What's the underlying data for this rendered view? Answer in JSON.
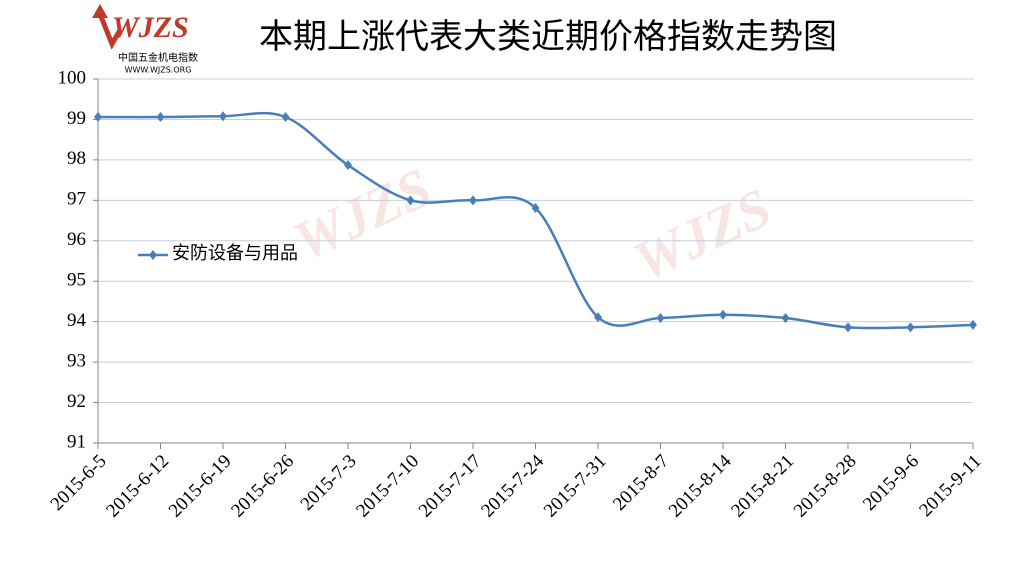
{
  "chart_data": {
    "type": "line",
    "title": "本期上涨代表大类近期价格指数走势图",
    "logo": {
      "mark": "WJZS",
      "name": "中国五金机电指数",
      "url": "WWW.WJZS.ORG"
    },
    "categories": [
      "2015-6-5",
      "2015-6-12",
      "2015-6-19",
      "2015-6-26",
      "2015-7-3",
      "2015-7-10",
      "2015-7-17",
      "2015-7-24",
      "2015-7-31",
      "2015-8-7",
      "2015-8-14",
      "2015-8-21",
      "2015-8-28",
      "2015-9-6",
      "2015-9-11"
    ],
    "series": [
      {
        "name": "安防设备与用品",
        "color": "#4a7ebb",
        "values": [
          99.06,
          99.06,
          99.08,
          99.06,
          97.87,
          97.0,
          97.0,
          96.81,
          94.11,
          94.09,
          94.17,
          94.09,
          93.86,
          93.86,
          93.92
        ]
      }
    ],
    "ylim": [
      91,
      100
    ],
    "yticks": [
      91,
      92,
      93,
      94,
      95,
      96,
      97,
      98,
      99,
      100
    ],
    "grid": true,
    "legend": "left"
  }
}
